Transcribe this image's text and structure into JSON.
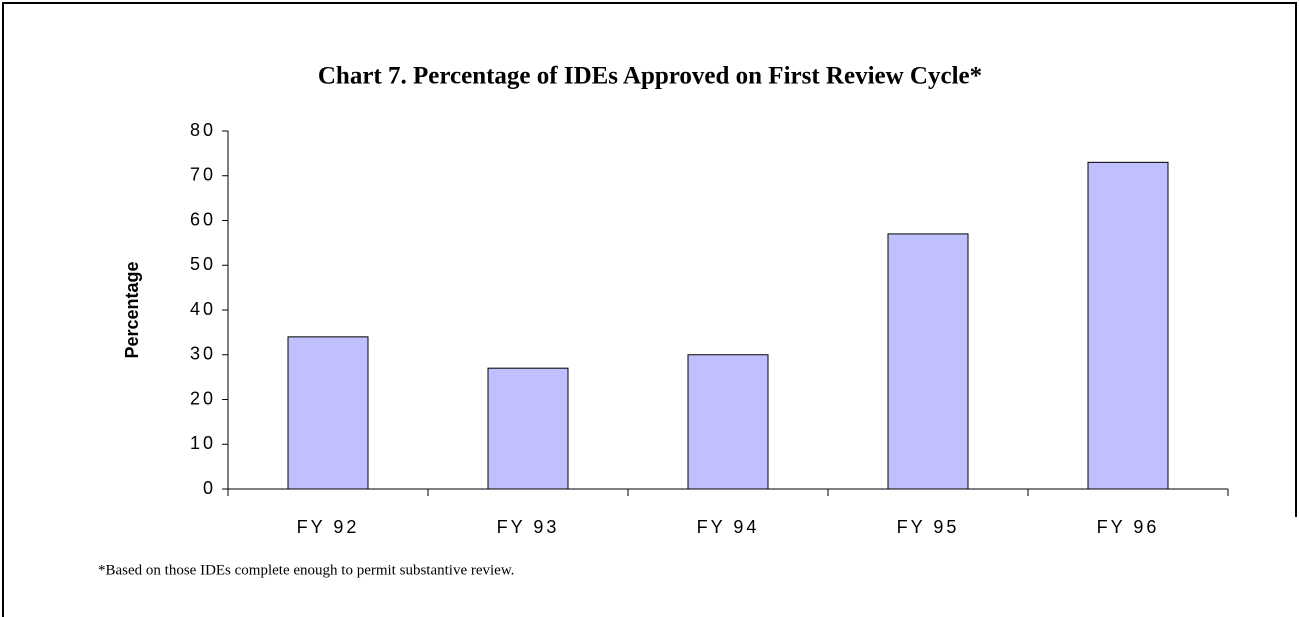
{
  "chart_data": {
    "type": "bar",
    "title": "Chart 7.  Percentage of IDEs Approved on First Review Cycle*",
    "y_label": "Percentage",
    "footnote": "*Based on those IDEs complete enough to permit substantive review.",
    "categories": [
      "FY 92",
      "FY 93",
      "FY 94",
      "FY 95",
      "FY 96"
    ],
    "values": [
      34,
      27,
      30,
      57,
      73
    ],
    "color": "#c0c0ff",
    "ylim": [
      0,
      80
    ],
    "yticks": [
      0,
      10,
      20,
      30,
      40,
      50,
      60,
      70,
      80
    ],
    "grid": false
  }
}
